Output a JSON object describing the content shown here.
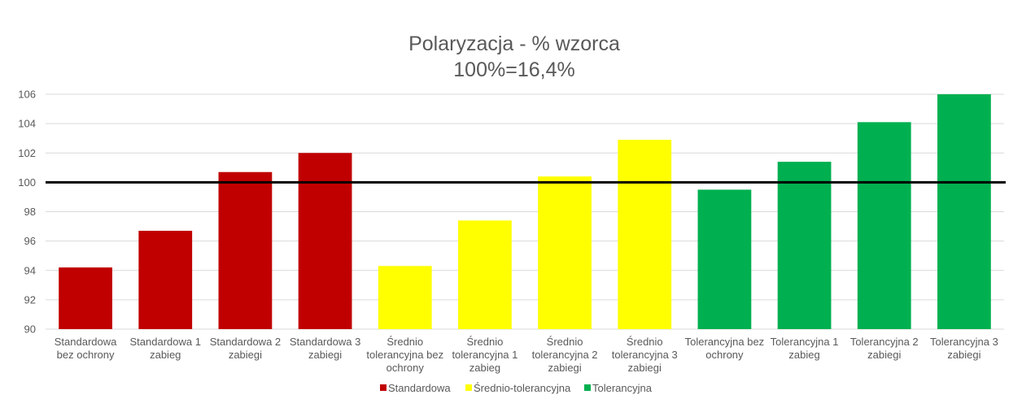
{
  "chart_data": {
    "type": "bar",
    "title": "Polaryzacja - % wzorca",
    "subtitle": "100%=16,4%",
    "xlabel": "",
    "ylabel": "",
    "ylim": [
      90,
      106
    ],
    "y_ticks": [
      90,
      92,
      94,
      96,
      98,
      100,
      102,
      104,
      106
    ],
    "grid": true,
    "legend_position": "bottom",
    "reference_line": 100,
    "categories": [
      [
        "Standardowa",
        "bez ochrony"
      ],
      [
        "Standardowa 1",
        "zabieg"
      ],
      [
        "Standardowa 2",
        "zabiegi"
      ],
      [
        "Standardowa 3",
        "zabiegi"
      ],
      [
        "Średnio",
        "tolerancyjna bez",
        "ochrony"
      ],
      [
        "Średnio",
        "tolerancyjna 1",
        "zabieg"
      ],
      [
        "Średnio",
        "tolerancyjna 2",
        "zabiegi"
      ],
      [
        "Średnio",
        "tolerancyjna 3",
        "zabiegi"
      ],
      [
        "Tolerancyjna bez",
        "ochrony"
      ],
      [
        "Tolerancyjna 1",
        "zabieg"
      ],
      [
        "Tolerancyjna 2",
        "zabiegi"
      ],
      [
        "Tolerancyjna 3",
        "zabiegi"
      ]
    ],
    "values": [
      94.2,
      96.7,
      100.7,
      102.0,
      94.3,
      97.4,
      100.4,
      102.9,
      99.5,
      101.4,
      104.1,
      106.0
    ],
    "groups": [
      0,
      0,
      0,
      0,
      1,
      1,
      1,
      1,
      2,
      2,
      2,
      2
    ],
    "series": [
      {
        "name": "Standardowa",
        "color": "#C00000"
      },
      {
        "name": "Średnio-tolerancyjna",
        "color": "#FFFF00"
      },
      {
        "name": "Tolerancyjna",
        "color": "#00B050"
      }
    ],
    "colors": {
      "gridline": "#D9D9D9",
      "reference_line": "#000000",
      "text": "#595959"
    }
  }
}
